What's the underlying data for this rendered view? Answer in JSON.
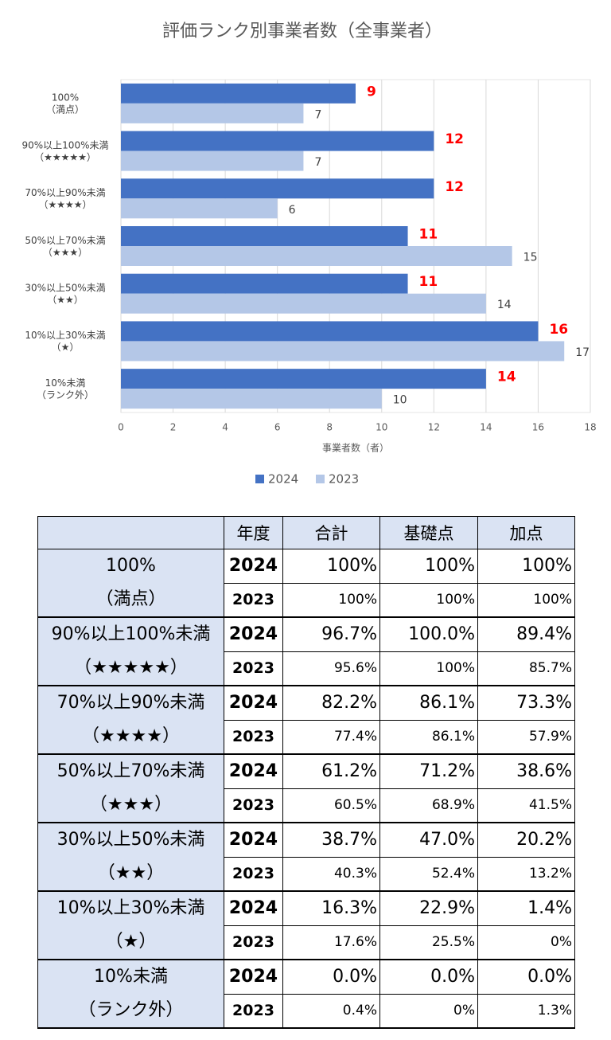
{
  "chart_data": {
    "type": "hbar",
    "title": "評価ランク別事業者数（全事業者）",
    "x_label": "事業者数（者）",
    "categories": [
      "100%\n（満点）",
      "90%以上100%未満\n（★★★★★）",
      "70%以上90%未満\n（★★★★）",
      "50%以上70%未満\n（★★★）",
      "30%以上50%未満\n（★★）",
      "10%以上30%未満\n（★）",
      "10%未満\n（ランク外）"
    ],
    "series": [
      {
        "name": "2024",
        "color": "#4472c4",
        "values": [
          9,
          12,
          12,
          11,
          11,
          16,
          14
        ]
      },
      {
        "name": "2023",
        "color": "#b4c7e7",
        "values": [
          7,
          7,
          6,
          15,
          14,
          17,
          10
        ]
      }
    ],
    "xlim": [
      0,
      18
    ],
    "xticks": [
      0,
      2,
      4,
      6,
      8,
      10,
      12,
      14,
      16,
      18
    ],
    "grid": true,
    "legend": "bottom"
  },
  "table": {
    "header": [
      "年度",
      "合計",
      "基礎点",
      "加点"
    ],
    "groups": [
      {
        "label": [
          "100%",
          "（満点）"
        ],
        "rows": [
          {
            "year": "2024",
            "values": [
              "100%",
              "100%",
              "100%"
            ]
          },
          {
            "year": "2023",
            "values": [
              "100%",
              "100%",
              "100%"
            ]
          }
        ]
      },
      {
        "label": [
          "90%以上100%未満",
          "（★★★★★）"
        ],
        "rows": [
          {
            "year": "2024",
            "values": [
              "96.7%",
              "100.0%",
              "89.4%"
            ]
          },
          {
            "year": "2023",
            "values": [
              "95.6%",
              "100%",
              "85.7%"
            ]
          }
        ]
      },
      {
        "label": [
          "70%以上90%未満",
          "（★★★★）"
        ],
        "rows": [
          {
            "year": "2024",
            "values": [
              "82.2%",
              "86.1%",
              "73.3%"
            ]
          },
          {
            "year": "2023",
            "values": [
              "77.4%",
              "86.1%",
              "57.9%"
            ]
          }
        ]
      },
      {
        "label": [
          "50%以上70%未満",
          "（★★★）"
        ],
        "rows": [
          {
            "year": "2024",
            "values": [
              "61.2%",
              "71.2%",
              "38.6%"
            ]
          },
          {
            "year": "2023",
            "values": [
              "60.5%",
              "68.9%",
              "41.5%"
            ]
          }
        ]
      },
      {
        "label": [
          "30%以上50%未満",
          "（★★）"
        ],
        "rows": [
          {
            "year": "2024",
            "values": [
              "38.7%",
              "47.0%",
              "20.2%"
            ]
          },
          {
            "year": "2023",
            "values": [
              "40.3%",
              "52.4%",
              "13.2%"
            ]
          }
        ]
      },
      {
        "label": [
          "10%以上30%未満",
          "（★）"
        ],
        "rows": [
          {
            "year": "2024",
            "values": [
              "16.3%",
              "22.9%",
              "1.4%"
            ]
          },
          {
            "year": "2023",
            "values": [
              "17.6%",
              "25.5%",
              "0%"
            ]
          }
        ]
      },
      {
        "label": [
          "10%未満",
          "（ランク外）"
        ],
        "rows": [
          {
            "year": "2024",
            "values": [
              "0.0%",
              "0.0%",
              "0.0%"
            ]
          },
          {
            "year": "2023",
            "values": [
              "0.4%",
              "0%",
              "1.3%"
            ]
          }
        ]
      }
    ]
  }
}
